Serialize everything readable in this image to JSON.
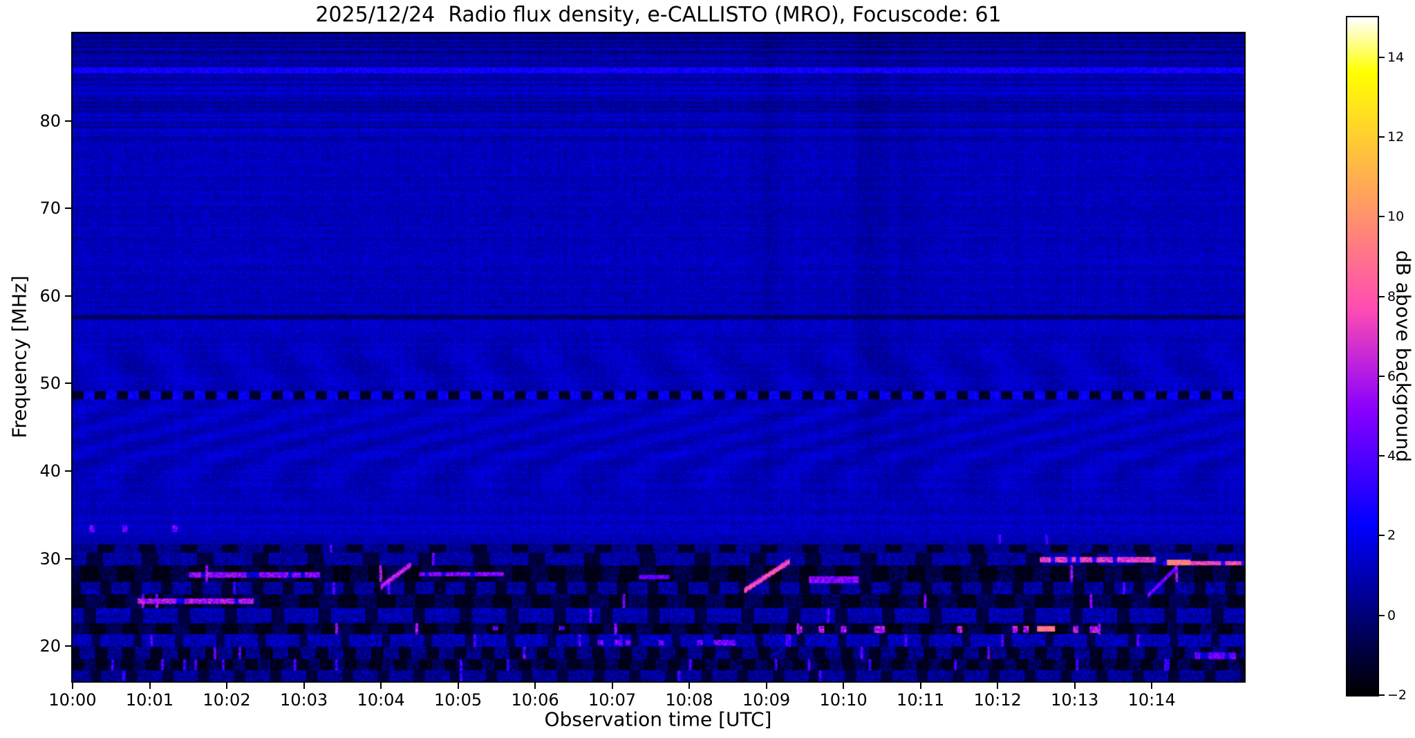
{
  "chart_data": {
    "type": "heatmap",
    "title": "2025/12/24  Radio flux density, e-CALLISTO (MRO), Focuscode: 61",
    "date": "2025/12/24",
    "instrument": "e-CALLISTO",
    "station": "MRO",
    "focuscode": "61",
    "xlabel": "Observation time [UTC]",
    "ylabel": "Frequency [MHz]",
    "colorbar_label": "dB above background",
    "colormap": "gnuplot2",
    "grid": false,
    "x_start": "10:00",
    "x_range_minutes": [
      0,
      15.2
    ],
    "x_ticks": [
      "10:00",
      "10:01",
      "10:02",
      "10:03",
      "10:04",
      "10:05",
      "10:06",
      "10:07",
      "10:08",
      "10:09",
      "10:10",
      "10:11",
      "10:12",
      "10:13",
      "10:14"
    ],
    "y_range_mhz": [
      16,
      90
    ],
    "y_ticks": [
      20,
      30,
      40,
      50,
      60,
      70,
      80
    ],
    "value_range_db": [
      -2,
      15
    ],
    "colorbar_ticks": [
      {
        "v": 14,
        "label": "14"
      },
      {
        "v": 12,
        "label": "12"
      },
      {
        "v": 10,
        "label": "10"
      },
      {
        "v": 8,
        "label": "8"
      },
      {
        "v": 6,
        "label": "6"
      },
      {
        "v": 4,
        "label": "4"
      },
      {
        "v": 2,
        "label": "2"
      },
      {
        "v": 0,
        "label": "0"
      },
      {
        "v": -2,
        "label": "−2"
      }
    ],
    "background_level_db": 1.2,
    "noise_db": 0.55,
    "rfi_lines": [
      {
        "f": 48.7,
        "halfwidth": 0.45,
        "style": "dashed",
        "low": -1.3,
        "high": 2.2,
        "period": 16,
        "duty": 0.5
      },
      {
        "f": 57.6,
        "halfwidth": 0.22,
        "style": "dark",
        "low": -0.4,
        "high": 0
      },
      {
        "f": 85.8,
        "halfwidth": 0.3,
        "style": "bright",
        "low": 0,
        "high": 2.6
      }
    ],
    "bands": [
      {
        "f0": 31.6,
        "f1": 32.8,
        "base": 0.9,
        "var": 0.6,
        "dashp": 0,
        "duty": 0,
        "low": 0,
        "spark": 0.003,
        "sparkv": 3.5
      },
      {
        "f0": 30.6,
        "f1": 31.6,
        "base": 0.3,
        "var": 0.9,
        "dashp": 30,
        "duty": 0.4,
        "low": -1.3,
        "spark": 0.004,
        "sparkv": 4.0
      },
      {
        "f0": 29.3,
        "f1": 30.6,
        "base": 0.8,
        "var": 1.0,
        "dashp": 40,
        "duty": 0.3,
        "low": -1.0,
        "spark": 0.006,
        "sparkv": 4.5
      },
      {
        "f0": 27.3,
        "f1": 29.3,
        "base": -0.7,
        "var": 0.9,
        "dashp": 26,
        "duty": 0.5,
        "low": -1.6,
        "spark": 0.012,
        "sparkv": 5.5
      },
      {
        "f0": 25.9,
        "f1": 27.3,
        "base": 0.6,
        "var": 1.1,
        "dashp": 22,
        "duty": 0.35,
        "low": -1.2,
        "spark": 0.01,
        "sparkv": 4.0
      },
      {
        "f0": 24.4,
        "f1": 25.9,
        "base": -0.5,
        "var": 1.0,
        "dashp": 28,
        "duty": 0.5,
        "low": -1.5,
        "spark": 0.01,
        "sparkv": 5.0
      },
      {
        "f0": 22.6,
        "f1": 24.4,
        "base": 0.9,
        "var": 1.0,
        "dashp": 34,
        "duty": 0.25,
        "low": -0.9,
        "spark": 0.008,
        "sparkv": 4.0
      },
      {
        "f0": 21.4,
        "f1": 22.6,
        "base": -0.6,
        "var": 0.9,
        "dashp": 24,
        "duty": 0.5,
        "low": -1.6,
        "spark": 0.012,
        "sparkv": 5.5
      },
      {
        "f0": 19.9,
        "f1": 21.4,
        "base": 1.1,
        "var": 1.1,
        "dashp": 30,
        "duty": 0.2,
        "low": -0.8,
        "spark": 0.02,
        "sparkv": 3.8
      },
      {
        "f0": 18.5,
        "f1": 19.9,
        "base": 0.2,
        "var": 1.2,
        "dashp": 20,
        "duty": 0.45,
        "low": -1.4,
        "spark": 0.015,
        "sparkv": 4.2
      },
      {
        "f0": 17.3,
        "f1": 18.5,
        "base": -0.4,
        "var": 1.1,
        "dashp": 18,
        "duty": 0.5,
        "low": -1.5,
        "spark": 0.03,
        "sparkv": 3.5
      },
      {
        "f0": 16.0,
        "f1": 17.3,
        "base": 0.5,
        "var": 1.0,
        "dashp": 26,
        "duty": 0.3,
        "low": -1.0,
        "spark": 0.01,
        "sparkv": 3.2
      }
    ],
    "features": [
      {
        "type": "streak",
        "t0": 12.55,
        "t1": 14.05,
        "f0": 29.6,
        "f1": 30.15,
        "v": 7.0
      },
      {
        "type": "streak",
        "t0": 14.15,
        "t1": 15.2,
        "f0": 29.25,
        "f1": 29.8,
        "v": 7.5
      },
      {
        "type": "blob",
        "t0": 14.2,
        "t1": 14.5,
        "f0": 29.3,
        "f1": 29.9,
        "v": 9.5
      },
      {
        "type": "diag",
        "t0": 4.0,
        "t1": 4.4,
        "f0": 26.8,
        "f1": 29.4,
        "v": 7.0,
        "w": 0.35
      },
      {
        "type": "diag",
        "t0": 8.72,
        "t1": 9.3,
        "f0": 26.4,
        "f1": 29.7,
        "v": 8.5,
        "w": 0.35
      },
      {
        "type": "diag",
        "t0": 13.95,
        "t1": 14.3,
        "f0": 25.8,
        "f1": 28.8,
        "v": 5.5,
        "w": 0.3
      },
      {
        "type": "streak",
        "t0": 1.5,
        "t1": 3.2,
        "f0": 27.9,
        "f1": 28.5,
        "v": 5.2
      },
      {
        "type": "streak",
        "t0": 4.5,
        "t1": 5.6,
        "f0": 28.0,
        "f1": 28.5,
        "v": 5.0
      },
      {
        "type": "streak",
        "t0": 0.85,
        "t1": 2.35,
        "f0": 24.9,
        "f1": 25.45,
        "v": 5.8
      },
      {
        "type": "blob",
        "t0": 9.55,
        "t1": 10.2,
        "f0": 27.2,
        "f1": 28.0,
        "v": 5.0
      },
      {
        "type": "blob",
        "t0": 7.35,
        "t1": 7.75,
        "f0": 27.6,
        "f1": 28.1,
        "v": 4.5
      },
      {
        "type": "dots",
        "t0": 6.8,
        "t1": 8.6,
        "f0": 20.1,
        "f1": 20.7,
        "v": 4.8,
        "p": 0.35
      },
      {
        "type": "dots",
        "t0": 9.3,
        "t1": 13.6,
        "f0": 21.6,
        "f1": 22.3,
        "v": 6.0,
        "p": 0.25
      },
      {
        "type": "blob",
        "t0": 12.52,
        "t1": 12.75,
        "f0": 21.7,
        "f1": 22.25,
        "v": 9.0
      },
      {
        "type": "dots",
        "t0": 0.1,
        "t1": 1.4,
        "f0": 33.1,
        "f1": 33.9,
        "v": 4.5,
        "p": 0.3
      },
      {
        "type": "dots",
        "t0": 5.4,
        "t1": 6.6,
        "f0": 21.8,
        "f1": 22.3,
        "v": 4.6,
        "p": 0.2
      },
      {
        "type": "streak",
        "t0": 14.55,
        "t1": 15.1,
        "f0": 18.6,
        "f1": 19.3,
        "v": 4.5
      }
    ],
    "colors": {
      "figure_background": "#ffffff",
      "axes_foreground": "#000000",
      "base_blue": "#0000c0"
    }
  }
}
